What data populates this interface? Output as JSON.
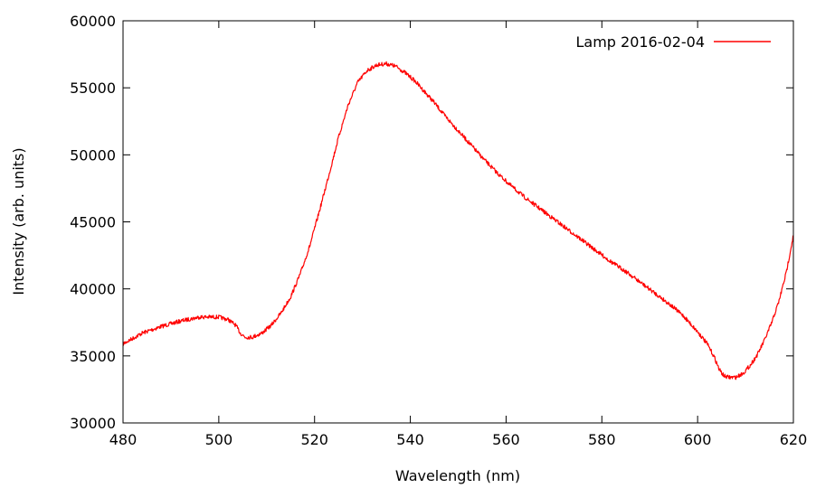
{
  "chart_data": {
    "type": "line",
    "xlabel": "Wavelength (nm)",
    "ylabel": "Intensity (arb. units)",
    "xlim": [
      480,
      620
    ],
    "ylim": [
      30000,
      60000
    ],
    "xticks": [
      480,
      500,
      520,
      540,
      560,
      580,
      600,
      620
    ],
    "yticks": [
      30000,
      35000,
      40000,
      45000,
      50000,
      55000,
      60000
    ],
    "grid": false,
    "legend_position": "top-right",
    "series": [
      {
        "name": "Lamp 2016-02-04",
        "color": "#ff0000",
        "x": [
          480,
          484,
          488,
          492,
          496,
          500,
          502,
          503.5,
          504.5,
          505.5,
          507,
          509,
          511,
          513,
          515,
          517,
          519,
          521,
          523,
          525,
          527,
          529,
          531,
          533,
          535,
          537,
          539,
          541,
          543,
          545,
          547,
          549,
          552,
          555,
          558,
          561,
          564,
          567,
          570,
          573,
          576,
          579,
          582,
          585,
          588,
          591,
          594,
          597,
          600,
          602,
          603.5,
          604.5,
          605.5,
          606.5,
          608,
          609.5,
          611,
          612.5,
          614,
          615.5,
          617,
          618.5,
          620
        ],
        "y": [
          35900,
          36700,
          37200,
          37600,
          37900,
          37900,
          37700,
          37300,
          36700,
          36400,
          36400,
          36700,
          37300,
          38200,
          39400,
          41100,
          43200,
          45800,
          48500,
          51300,
          53700,
          55400,
          56300,
          56700,
          56800,
          56600,
          56100,
          55500,
          54700,
          53900,
          53000,
          52200,
          51000,
          49800,
          48700,
          47700,
          46800,
          46000,
          45200,
          44400,
          43600,
          42800,
          42000,
          41300,
          40500,
          39700,
          38900,
          38000,
          36800,
          35900,
          34900,
          34000,
          33500,
          33400,
          33400,
          33700,
          34300,
          35100,
          36200,
          37500,
          39100,
          41200,
          44000
        ]
      }
    ]
  }
}
